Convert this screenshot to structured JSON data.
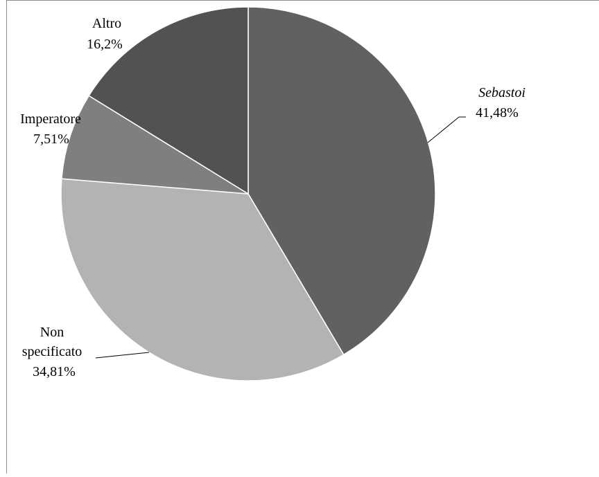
{
  "chart_data": {
    "type": "pie",
    "slices": [
      {
        "label": "Sebastoi",
        "value_label": "41,48%",
        "value": 41.48,
        "color": "#616161",
        "italic": true
      },
      {
        "label": "Non specificato",
        "value_label": "34,81%",
        "value": 34.81,
        "color": "#b3b3b3",
        "italic": false
      },
      {
        "label": "Imperatore",
        "value_label": "7,51%",
        "value": 7.51,
        "color": "#7f7f7f",
        "italic": false
      },
      {
        "label": "Altro",
        "value_label": "16,2%",
        "value": 16.2,
        "color": "#525252",
        "italic": false
      }
    ],
    "start": "12 o'clock",
    "direction": "clockwise",
    "legend": "none",
    "grid": false,
    "data_labels": "outside with leader lines"
  }
}
